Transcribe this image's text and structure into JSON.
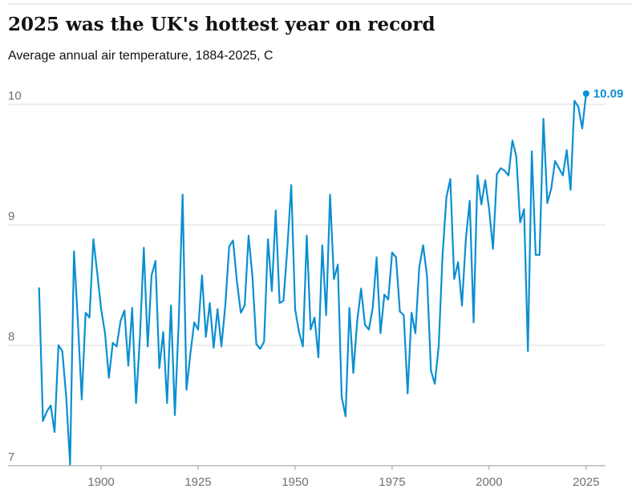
{
  "chart_data": {
    "type": "line",
    "title": "2025 was the UK's hottest year on record",
    "subtitle": "Average annual air temperature, 1884-2025, C",
    "color": "#0a8fd1",
    "x": [
      1884,
      1885,
      1886,
      1887,
      1888,
      1889,
      1890,
      1891,
      1892,
      1893,
      1894,
      1895,
      1896,
      1897,
      1898,
      1899,
      1900,
      1901,
      1902,
      1903,
      1904,
      1905,
      1906,
      1907,
      1908,
      1909,
      1910,
      1911,
      1912,
      1913,
      1914,
      1915,
      1916,
      1917,
      1918,
      1919,
      1920,
      1921,
      1922,
      1923,
      1924,
      1925,
      1926,
      1927,
      1928,
      1929,
      1930,
      1931,
      1932,
      1933,
      1934,
      1935,
      1936,
      1937,
      1938,
      1939,
      1940,
      1941,
      1942,
      1943,
      1944,
      1945,
      1946,
      1947,
      1948,
      1949,
      1950,
      1951,
      1952,
      1953,
      1954,
      1955,
      1956,
      1957,
      1958,
      1959,
      1960,
      1961,
      1962,
      1963,
      1964,
      1965,
      1966,
      1967,
      1968,
      1969,
      1970,
      1971,
      1972,
      1973,
      1974,
      1975,
      1976,
      1977,
      1978,
      1979,
      1980,
      1981,
      1982,
      1983,
      1984,
      1985,
      1986,
      1987,
      1988,
      1989,
      1990,
      1991,
      1992,
      1993,
      1994,
      1995,
      1996,
      1997,
      1998,
      1999,
      2000,
      2001,
      2002,
      2003,
      2004,
      2005,
      2006,
      2007,
      2008,
      2009,
      2010,
      2011,
      2012,
      2013,
      2014,
      2015,
      2016,
      2017,
      2018,
      2019,
      2020,
      2021,
      2022,
      2023,
      2024,
      2025
    ],
    "values": [
      8.48,
      7.37,
      7.45,
      7.5,
      7.28,
      8.0,
      7.95,
      7.57,
      7.01,
      8.78,
      8.2,
      7.55,
      8.27,
      8.23,
      8.88,
      8.6,
      8.3,
      8.1,
      7.73,
      8.02,
      7.99,
      8.2,
      8.29,
      7.83,
      8.31,
      7.52,
      8.07,
      8.81,
      7.99,
      8.58,
      8.7,
      7.81,
      8.11,
      7.52,
      8.33,
      7.42,
      8.2,
      9.25,
      7.63,
      7.93,
      8.19,
      8.13,
      8.58,
      8.07,
      8.35,
      7.98,
      8.3,
      7.99,
      8.33,
      8.82,
      8.87,
      8.53,
      8.27,
      8.33,
      8.91,
      8.57,
      8.01,
      7.97,
      8.03,
      8.88,
      8.45,
      9.12,
      8.35,
      8.37,
      8.81,
      9.33,
      8.3,
      8.11,
      7.99,
      8.91,
      8.13,
      8.23,
      7.9,
      8.83,
      8.25,
      9.25,
      8.55,
      8.67,
      7.57,
      7.41,
      8.31,
      7.77,
      8.2,
      8.47,
      8.17,
      8.13,
      8.31,
      8.73,
      8.1,
      8.42,
      8.38,
      8.77,
      8.73,
      8.28,
      8.25,
      7.6,
      8.27,
      8.1,
      8.65,
      8.83,
      8.57,
      7.79,
      7.68,
      7.99,
      8.75,
      9.23,
      9.38,
      8.55,
      8.69,
      8.33,
      8.88,
      9.2,
      8.19,
      9.41,
      9.17,
      9.37,
      9.13,
      8.8,
      9.42,
      9.47,
      9.45,
      9.41,
      9.7,
      9.57,
      9.02,
      9.13,
      7.95,
      9.61,
      8.75,
      8.75,
      9.88,
      9.18,
      9.3,
      9.53,
      9.47,
      9.41,
      9.62,
      9.29,
      10.03,
      9.98,
      9.8,
      10.09
    ],
    "xlim": [
      1876,
      2030
    ],
    "xticks": [
      1900,
      1925,
      1950,
      1975,
      2000,
      2025
    ],
    "ylim": [
      7,
      10.2
    ],
    "yticks": [
      7,
      8,
      9,
      10
    ],
    "grid": true
  }
}
